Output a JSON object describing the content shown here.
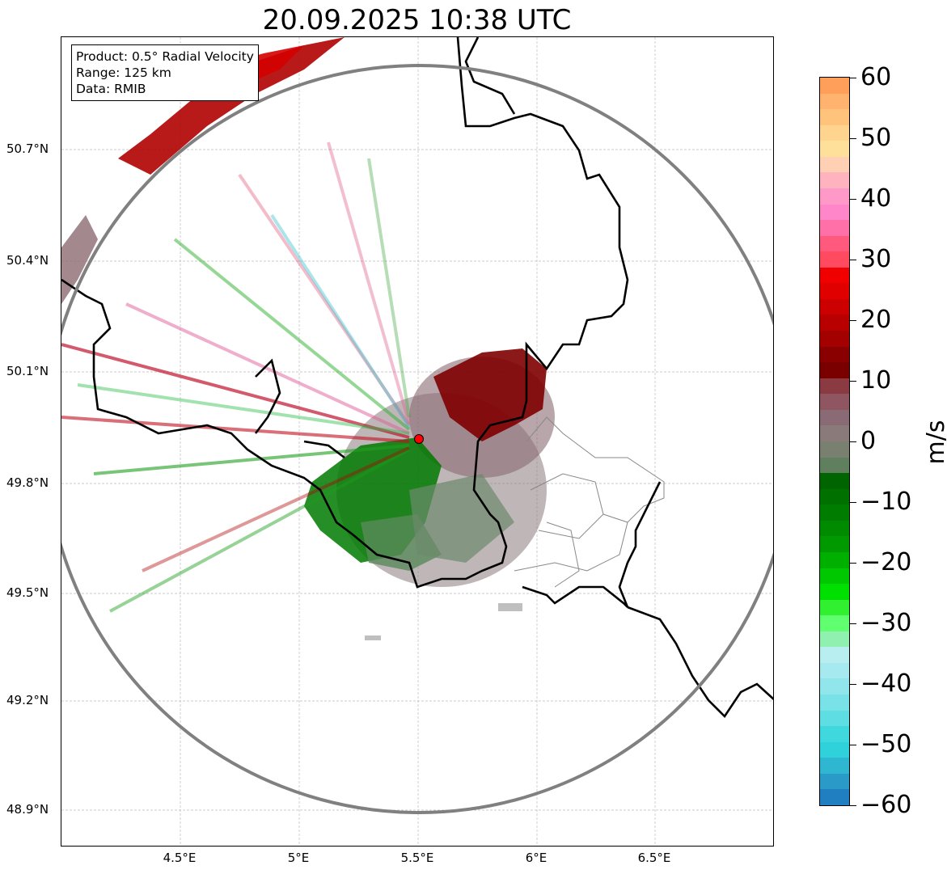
{
  "title": "20.09.2025 10:38 UTC",
  "legend": {
    "product": "Product: 0.5° Radial Velocity",
    "range": "Range: 125 km",
    "data": "Data: RMIB"
  },
  "lat_labels": [
    "50.7°N",
    "50.4°N",
    "50.1°N",
    "49.8°N",
    "49.5°N",
    "49.2°N",
    "48.9°N"
  ],
  "lon_labels": [
    "4.5°E",
    "5°E",
    "5.5°E",
    "6°E",
    "6.5°E"
  ],
  "colorbar": {
    "unit": "m/s",
    "ticks": [
      "60",
      "50",
      "40",
      "30",
      "20",
      "10",
      "0",
      "−10",
      "−20",
      "−30",
      "−40",
      "−50",
      "−60"
    ],
    "min": -60,
    "max": 60
  },
  "colors": {
    "range_ring": "#808080",
    "border": "#000000",
    "radar_site": "#ff0000"
  }
}
